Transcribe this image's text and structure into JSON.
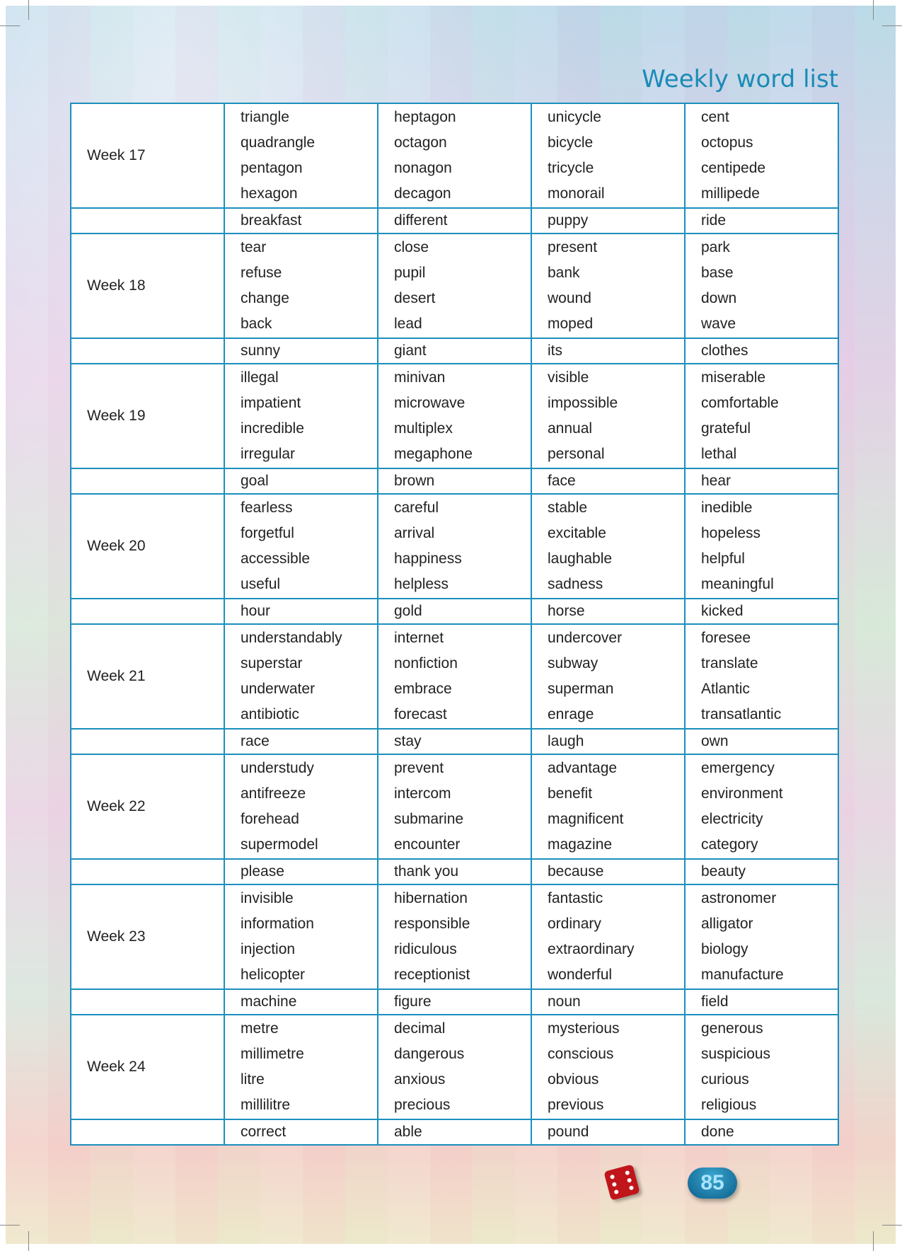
{
  "title": "Weekly word list",
  "page_number": "85",
  "weeks": [
    {
      "label": "Week 17",
      "words": [
        [
          "triangle",
          "quadrangle",
          "pentagon",
          "hexagon"
        ],
        [
          "heptagon",
          "octagon",
          "nonagon",
          "decagon"
        ],
        [
          "unicycle",
          "bicycle",
          "tricycle",
          "monorail"
        ],
        [
          "cent",
          "octopus",
          "centipede",
          "millipede"
        ]
      ],
      "extra": [
        "breakfast",
        "different",
        "puppy",
        "ride"
      ]
    },
    {
      "label": "Week 18",
      "words": [
        [
          "tear",
          "refuse",
          "change",
          "back"
        ],
        [
          "close",
          "pupil",
          "desert",
          "lead"
        ],
        [
          "present",
          "bank",
          "wound",
          "moped"
        ],
        [
          "park",
          "base",
          "down",
          "wave"
        ]
      ],
      "extra": [
        "sunny",
        "giant",
        "its",
        "clothes"
      ]
    },
    {
      "label": "Week 19",
      "words": [
        [
          "illegal",
          "impatient",
          "incredible",
          "irregular"
        ],
        [
          "minivan",
          "microwave",
          "multiplex",
          "megaphone"
        ],
        [
          "visible",
          "impossible",
          "annual",
          "personal"
        ],
        [
          "miserable",
          "comfortable",
          "grateful",
          "lethal"
        ]
      ],
      "extra": [
        "goal",
        "brown",
        "face",
        "hear"
      ]
    },
    {
      "label": "Week 20",
      "words": [
        [
          "fearless",
          "forgetful",
          "accessible",
          "useful"
        ],
        [
          "careful",
          "arrival",
          "happiness",
          "helpless"
        ],
        [
          "stable",
          "excitable",
          "laughable",
          "sadness"
        ],
        [
          "inedible",
          "hopeless",
          "helpful",
          "meaningful"
        ]
      ],
      "extra": [
        "hour",
        "gold",
        "horse",
        "kicked"
      ]
    },
    {
      "label": "Week 21",
      "words": [
        [
          "understandably",
          "superstar",
          "underwater",
          "antibiotic"
        ],
        [
          "internet",
          "nonfiction",
          "embrace",
          "forecast"
        ],
        [
          "undercover",
          "subway",
          "superman",
          "enrage"
        ],
        [
          "foresee",
          "translate",
          "Atlantic",
          "transatlantic"
        ]
      ],
      "extra": [
        "race",
        "stay",
        "laugh",
        "own"
      ]
    },
    {
      "label": "Week 22",
      "words": [
        [
          "understudy",
          "antifreeze",
          "forehead",
          "supermodel"
        ],
        [
          "prevent",
          "intercom",
          "submarine",
          "encounter"
        ],
        [
          "advantage",
          "benefit",
          "magnificent",
          "magazine"
        ],
        [
          "emergency",
          "environment",
          "electricity",
          "category"
        ]
      ],
      "extra": [
        "please",
        "thank you",
        "because",
        "beauty"
      ]
    },
    {
      "label": "Week 23",
      "words": [
        [
          "invisible",
          "information",
          "injection",
          "helicopter"
        ],
        [
          "hibernation",
          "responsible",
          "ridiculous",
          "receptionist"
        ],
        [
          "fantastic",
          "ordinary",
          "extraordinary",
          "wonderful"
        ],
        [
          "astronomer",
          "alligator",
          "biology",
          "manufacture"
        ]
      ],
      "extra": [
        "machine",
        "figure",
        "noun",
        "field"
      ]
    },
    {
      "label": "Week 24",
      "words": [
        [
          "metre",
          "millimetre",
          "litre",
          "millilitre"
        ],
        [
          "decimal",
          "dangerous",
          "anxious",
          "precious"
        ],
        [
          "mysterious",
          "conscious",
          "obvious",
          "previous"
        ],
        [
          "generous",
          "suspicious",
          "curious",
          "religious"
        ]
      ],
      "extra": [
        "correct",
        "able",
        "pound",
        "done"
      ]
    }
  ],
  "colors": {
    "accent": "#1b8fbd",
    "title": "#1a8bb5",
    "dice": "#c0151a"
  }
}
